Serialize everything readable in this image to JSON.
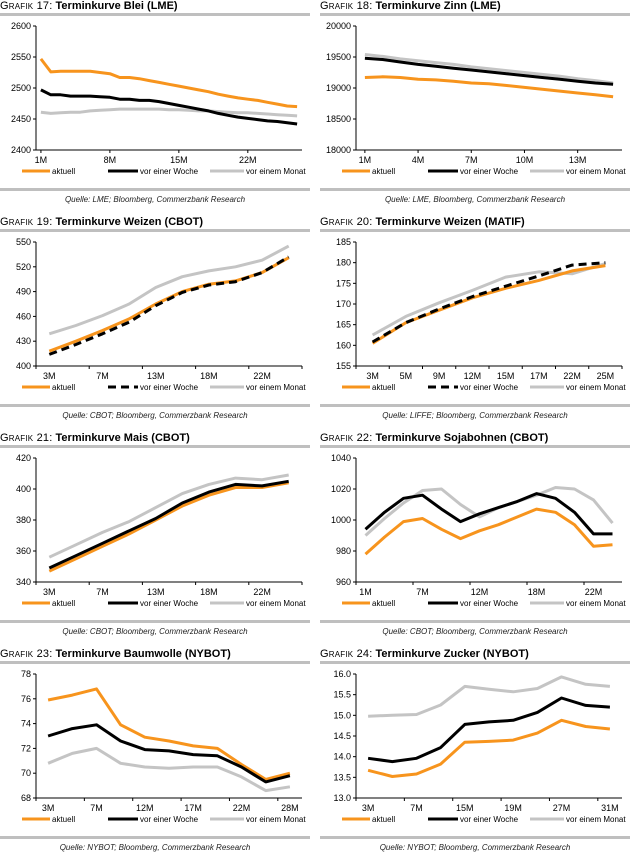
{
  "colors": {
    "aktuell": "#f7941d",
    "woche": "#000000",
    "monat": "#c4c4c4",
    "rule": "#bfbfbf"
  },
  "chart_data": [
    {
      "id": "g17",
      "type": "line",
      "prefix": "Grafik 17:",
      "title": "Terminkurve Blei (LME)",
      "source": "Quelle: LME; Bloomberg, Commerzbank Research",
      "ylim": [
        2400,
        2600
      ],
      "yticks": [
        2400,
        2450,
        2500,
        2550,
        2600
      ],
      "x_mode": "numeric",
      "xlim": [
        0.5,
        27.5
      ],
      "xticks": [
        {
          "pos": 1,
          "label": "1M"
        },
        {
          "pos": 8,
          "label": "8M"
        },
        {
          "pos": 15,
          "label": "15M"
        },
        {
          "pos": 22,
          "label": "22M"
        }
      ],
      "x": [
        1,
        2,
        3,
        4,
        5,
        6,
        7,
        8,
        9,
        10,
        11,
        12,
        13,
        14,
        15,
        16,
        17,
        18,
        19,
        20,
        21,
        22,
        23,
        24,
        25,
        26,
        27
      ],
      "series": [
        {
          "name": "aktuell",
          "key": "aktuell",
          "dashed": false,
          "values": [
            2547,
            2526,
            2527,
            2527,
            2527,
            2527,
            2525,
            2523,
            2517,
            2517,
            2515,
            2512,
            2509,
            2506,
            2503,
            2500,
            2497,
            2494,
            2490,
            2487,
            2484,
            2482,
            2480,
            2477,
            2474,
            2471,
            2470
          ]
        },
        {
          "name": "vor einer Woche",
          "key": "woche",
          "dashed": false,
          "values": [
            2497,
            2489,
            2489,
            2487,
            2487,
            2487,
            2486,
            2485,
            2482,
            2482,
            2480,
            2480,
            2478,
            2475,
            2472,
            2469,
            2466,
            2463,
            2459,
            2456,
            2453,
            2451,
            2449,
            2447,
            2446,
            2444,
            2442
          ]
        },
        {
          "name": "vor einem Monat",
          "key": "monat",
          "dashed": false,
          "values": [
            2461,
            2459,
            2460,
            2461,
            2461,
            2463,
            2464,
            2465,
            2466,
            2466,
            2466,
            2466,
            2466,
            2465,
            2465,
            2464,
            2463,
            2463,
            2462,
            2461,
            2460,
            2460,
            2459,
            2458,
            2457,
            2456,
            2455
          ]
        }
      ]
    },
    {
      "id": "g18",
      "type": "line",
      "prefix": "Grafik 18:",
      "title": "Terminkurve Zinn (LME)",
      "source": "Quelle: LME, Bloomberg, Commerzbank Research",
      "ylim": [
        18000,
        20000
      ],
      "yticks": [
        18000,
        18500,
        19000,
        19500,
        20000
      ],
      "x_mode": "numeric",
      "xlim": [
        0.5,
        15.5
      ],
      "xticks": [
        {
          "pos": 1,
          "label": "1M"
        },
        {
          "pos": 4,
          "label": "4M"
        },
        {
          "pos": 7,
          "label": "7M"
        },
        {
          "pos": 10,
          "label": "10M"
        },
        {
          "pos": 13,
          "label": "13M"
        }
      ],
      "x": [
        1,
        2,
        3,
        4,
        5,
        6,
        7,
        8,
        9,
        10,
        11,
        12,
        13,
        14,
        15
      ],
      "series": [
        {
          "name": "aktuell",
          "key": "aktuell",
          "dashed": false,
          "values": [
            19170,
            19180,
            19170,
            19140,
            19130,
            19110,
            19080,
            19070,
            19040,
            19010,
            18980,
            18950,
            18920,
            18890,
            18860
          ]
        },
        {
          "name": "vor einer Woche",
          "key": "woche",
          "dashed": false,
          "values": [
            19480,
            19460,
            19420,
            19380,
            19350,
            19320,
            19290,
            19260,
            19230,
            19200,
            19170,
            19140,
            19110,
            19080,
            19060
          ]
        },
        {
          "name": "vor einem Monat",
          "key": "monat",
          "dashed": false,
          "values": [
            19540,
            19510,
            19470,
            19440,
            19410,
            19380,
            19340,
            19310,
            19280,
            19250,
            19220,
            19190,
            19150,
            19120,
            19080
          ]
        }
      ]
    },
    {
      "id": "g19",
      "type": "line",
      "prefix": "Grafik 19:",
      "title": "Terminkurve Weizen (CBOT)",
      "source": "Quelle: CBOT; Bloomberg, Commerzbank Research",
      "ylim": [
        400,
        550
      ],
      "yticks": [
        400,
        430,
        460,
        490,
        520,
        550
      ],
      "x_mode": "category",
      "label_every": 2,
      "categories": [
        "3M",
        "",
        "7M",
        "",
        "13M",
        "",
        "18M",
        "",
        "22M",
        ""
      ],
      "series": [
        {
          "name": "aktuell",
          "key": "aktuell",
          "dashed": false,
          "values": [
            418,
            430,
            443,
            457,
            475,
            490,
            499,
            503,
            513,
            531
          ]
        },
        {
          "name": "vor einer Woche",
          "key": "woche",
          "dashed": true,
          "values": [
            414,
            426,
            439,
            453,
            473,
            489,
            498,
            502,
            513,
            532
          ]
        },
        {
          "name": "vor einem Monat",
          "key": "monat",
          "dashed": false,
          "values": [
            439,
            449,
            461,
            475,
            495,
            508,
            515,
            520,
            528,
            545
          ]
        }
      ]
    },
    {
      "id": "g20",
      "type": "line",
      "prefix": "Grafik 20:",
      "title": "Terminkurve Weizen (MATIF)",
      "source": "Quelle: LIFFE; Bloomberg, Commerzbank Research",
      "ylim": [
        155,
        185
      ],
      "yticks": [
        155,
        160,
        165,
        170,
        175,
        180,
        185
      ],
      "x_mode": "category",
      "label_every": 1,
      "categories": [
        "3M",
        "5M",
        "9M",
        "12M",
        "15M",
        "17M",
        "22M",
        "25M"
      ],
      "series": [
        {
          "name": "aktuell",
          "key": "aktuell",
          "dashed": false,
          "values": [
            160.5,
            165.5,
            168.5,
            171.5,
            173.8,
            175.7,
            178.0,
            179.3
          ]
        },
        {
          "name": "vor einer Woche",
          "key": "woche",
          "dashed": true,
          "values": [
            160.8,
            165.5,
            168.8,
            171.8,
            174.3,
            176.8,
            179.4,
            180.0
          ]
        },
        {
          "name": "vor einem Monat",
          "key": "monat",
          "dashed": false,
          "values": [
            162.5,
            167.0,
            170.3,
            173.3,
            176.5,
            177.8,
            177.3,
            179.8
          ]
        }
      ]
    },
    {
      "id": "g21",
      "type": "line",
      "prefix": "Grafik 21:",
      "title": "Terminkurve Mais (CBOT)",
      "source": "Quelle: CBOT; Bloomberg, Commerzbank Research",
      "ylim": [
        340,
        420
      ],
      "yticks": [
        340,
        360,
        380,
        400,
        420
      ],
      "x_mode": "category",
      "label_every": 2,
      "categories": [
        "3M",
        "",
        "7M",
        "",
        "13M",
        "",
        "18M",
        "",
        "22M",
        ""
      ],
      "series": [
        {
          "name": "aktuell",
          "key": "aktuell",
          "dashed": false,
          "values": [
            347,
            355,
            363,
            371,
            380,
            389,
            396,
            401,
            401,
            404
          ]
        },
        {
          "name": "vor einer Woche",
          "key": "woche",
          "dashed": false,
          "values": [
            349,
            357,
            365,
            373,
            381,
            391,
            398,
            403,
            402,
            405
          ]
        },
        {
          "name": "vor einem Monat",
          "key": "monat",
          "dashed": false,
          "values": [
            356,
            364,
            372,
            379,
            388,
            397,
            403,
            407,
            406,
            409
          ]
        }
      ]
    },
    {
      "id": "g22",
      "type": "line",
      "prefix": "Grafik 22:",
      "title": "Terminkurve Sojabohnen (CBOT)",
      "source": "Quelle: CBOT; Bloomberg, Commerzbank Research",
      "ylim": [
        960,
        1040
      ],
      "yticks": [
        960,
        980,
        1000,
        1020,
        1040
      ],
      "x_mode": "category",
      "label_every": 3,
      "categories": [
        "1M",
        "",
        "",
        "7M",
        "",
        "",
        "12M",
        "",
        "",
        "18M",
        "",
        "",
        "22M",
        ""
      ],
      "series": [
        {
          "name": "aktuell",
          "key": "aktuell",
          "dashed": false,
          "values": [
            978,
            989,
            999,
            1001,
            994,
            988,
            993,
            997,
            1002,
            1007,
            1005,
            997,
            983,
            984
          ]
        },
        {
          "name": "vor einer Woche",
          "key": "woche",
          "dashed": false,
          "values": [
            994,
            1005,
            1014,
            1016,
            1007,
            999,
            1004,
            1008,
            1012,
            1017,
            1014,
            1005,
            991,
            991
          ]
        },
        {
          "name": "vor einem Monat",
          "key": "monat",
          "dashed": false,
          "values": [
            990,
            1001,
            1011,
            1019,
            1020,
            1010,
            1002,
            1008,
            1012,
            1016,
            1021,
            1020,
            1013,
            998
          ]
        }
      ]
    },
    {
      "id": "g23",
      "type": "line",
      "prefix": "Grafik 23:",
      "title": "Terminkurve Baumwolle (NYBOT)",
      "source": "Quelle: NYBOT; Bloomberg, Commerzbank Research",
      "ylim": [
        68,
        78
      ],
      "yticks": [
        68,
        70,
        72,
        74,
        76,
        78
      ],
      "x_mode": "category",
      "label_every": 2,
      "categories": [
        "3M",
        "",
        "7M",
        "",
        "12M",
        "",
        "17M",
        "",
        "22M",
        "",
        "28M"
      ],
      "series": [
        {
          "name": "aktuell",
          "key": "aktuell",
          "dashed": false,
          "values": [
            75.9,
            76.3,
            76.8,
            73.9,
            72.9,
            72.6,
            72.2,
            72.0,
            70.7,
            69.5,
            70.0
          ]
        },
        {
          "name": "vor einer Woche",
          "key": "woche",
          "dashed": false,
          "values": [
            73.0,
            73.6,
            73.9,
            72.6,
            71.9,
            71.8,
            71.5,
            71.4,
            70.5,
            69.3,
            69.8
          ]
        },
        {
          "name": "vor einem Monat",
          "key": "monat",
          "dashed": false,
          "values": [
            70.8,
            71.6,
            72.0,
            70.8,
            70.5,
            70.4,
            70.5,
            70.5,
            69.7,
            68.6,
            68.9
          ]
        }
      ]
    },
    {
      "id": "g24",
      "type": "line",
      "prefix": "Grafik 24:",
      "title": "Terminkurve Zucker (NYBOT)",
      "source": "Quelle: NYBOT; Bloomberg, Commerzbank Research",
      "ylim": [
        13.0,
        16.0
      ],
      "yticks": [
        13.0,
        13.5,
        14.0,
        14.5,
        15.0,
        15.5,
        16.0
      ],
      "ytick_decimals": 1,
      "x_mode": "category",
      "label_every": 2,
      "categories": [
        "3M",
        "",
        "7M",
        "",
        "15M",
        "",
        "19M",
        "",
        "27M",
        "",
        "31M"
      ],
      "series": [
        {
          "name": "aktuell",
          "key": "aktuell",
          "dashed": false,
          "values": [
            13.67,
            13.52,
            13.58,
            13.82,
            14.35,
            14.37,
            14.4,
            14.57,
            14.88,
            14.73,
            14.67
          ]
        },
        {
          "name": "vor einer Woche",
          "key": "woche",
          "dashed": false,
          "values": [
            13.96,
            13.88,
            13.96,
            14.22,
            14.78,
            14.84,
            14.88,
            15.07,
            15.42,
            15.24,
            15.2
          ]
        },
        {
          "name": "vor einem Monat",
          "key": "monat",
          "dashed": false,
          "values": [
            14.98,
            15.0,
            15.02,
            15.25,
            15.7,
            15.63,
            15.57,
            15.65,
            15.93,
            15.75,
            15.7
          ]
        }
      ]
    }
  ]
}
